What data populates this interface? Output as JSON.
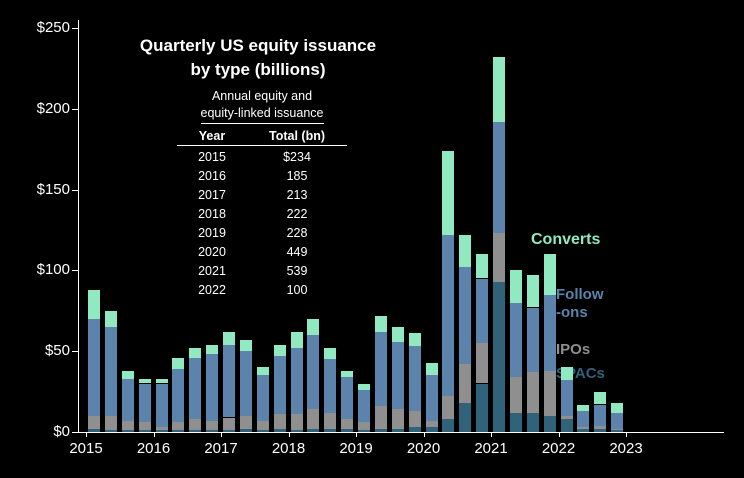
{
  "title": {
    "line1": "Quarterly US equity issuance",
    "line2": "by type (billions)"
  },
  "inset_table": {
    "heading_line1": "Annual equity and",
    "heading_line2": "equity-linked issuance",
    "columns": [
      "Year",
      "Total (bn)"
    ],
    "rows": [
      {
        "year": "2015",
        "total": "$234"
      },
      {
        "year": "2016",
        "total": "185"
      },
      {
        "year": "2017",
        "total": "213"
      },
      {
        "year": "2018",
        "total": "222"
      },
      {
        "year": "2019",
        "total": "228"
      },
      {
        "year": "2020",
        "total": "449"
      },
      {
        "year": "2021",
        "total": "539"
      },
      {
        "year": "2022",
        "total": "100"
      }
    ]
  },
  "legend": {
    "items": [
      {
        "name": "converts",
        "label_lines": [
          "Converts"
        ],
        "color": "#90e9c1"
      },
      {
        "name": "follow-ons",
        "label_lines": [
          "Follow",
          "-ons"
        ],
        "color": "#5c83ab"
      },
      {
        "name": "ipos",
        "label_lines": [
          "IPOs"
        ],
        "color": "#8f8f8f"
      },
      {
        "name": "spacs",
        "label_lines": [
          "SPACs"
        ],
        "color": "#30627a"
      }
    ]
  },
  "chart_data": {
    "type": "bar",
    "stacked": true,
    "title": "Quarterly US equity issuance by type (billions)",
    "background": "#000000",
    "axis_color": "#ffffff",
    "ylim": [
      0,
      250
    ],
    "y_tick_values": [
      0,
      50,
      100,
      150,
      200,
      250
    ],
    "y_tick_labels": [
      "$0",
      "$50",
      "$100",
      "$150",
      "$200",
      "$250"
    ],
    "x_ticks": [
      "2015",
      "2016",
      "2017",
      "2018",
      "2019",
      "2020",
      "2021",
      "2022",
      "2023"
    ],
    "x_quarters": [
      "2015 Q1",
      "2015 Q2",
      "2015 Q3",
      "2015 Q4",
      "2016 Q1",
      "2016 Q2",
      "2016 Q3",
      "2016 Q4",
      "2017 Q1",
      "2017 Q2",
      "2017 Q3",
      "2017 Q4",
      "2018 Q1",
      "2018 Q2",
      "2018 Q3",
      "2018 Q4",
      "2019 Q1",
      "2019 Q2",
      "2019 Q3",
      "2019 Q4",
      "2020 Q1",
      "2020 Q2",
      "2020 Q3",
      "2020 Q4",
      "2021 Q1",
      "2021 Q2",
      "2021 Q3",
      "2021 Q4",
      "2022 Q1",
      "2022 Q2",
      "2022 Q3",
      "2022 Q4"
    ],
    "series": [
      {
        "name": "SPACs",
        "color": "#30627a",
        "values": [
          2,
          1,
          1,
          1,
          1,
          1,
          1,
          1,
          1,
          2,
          1,
          2,
          1,
          2,
          2,
          2,
          1,
          2,
          2,
          3,
          3,
          8,
          18,
          30,
          93,
          12,
          12,
          10,
          8,
          2,
          2,
          1
        ]
      },
      {
        "name": "IPOs",
        "color": "#8f8f8f",
        "values": [
          8,
          9,
          6,
          5,
          2,
          5,
          7,
          6,
          8,
          8,
          6,
          9,
          10,
          12,
          10,
          6,
          5,
          14,
          12,
          10,
          4,
          14,
          24,
          25,
          30,
          22,
          25,
          28,
          2,
          1,
          2,
          1
        ]
      },
      {
        "name": "Follow-ons",
        "color": "#5c83ab",
        "values": [
          60,
          55,
          26,
          24,
          27,
          33,
          38,
          41,
          45,
          40,
          28,
          36,
          41,
          46,
          33,
          26,
          20,
          46,
          42,
          40,
          28,
          100,
          60,
          40,
          69,
          46,
          40,
          47,
          22,
          10,
          13,
          10
        ]
      },
      {
        "name": "Converts",
        "color": "#90e9c1",
        "values": [
          18,
          10,
          5,
          3,
          3,
          7,
          6,
          6,
          8,
          7,
          5,
          7,
          10,
          10,
          7,
          4,
          4,
          10,
          9,
          8,
          8,
          52,
          20,
          15,
          40,
          20,
          20,
          25,
          8,
          4,
          8,
          6
        ]
      }
    ],
    "annual_totals": [
      234,
      185,
      213,
      222,
      228,
      449,
      539,
      100
    ]
  }
}
